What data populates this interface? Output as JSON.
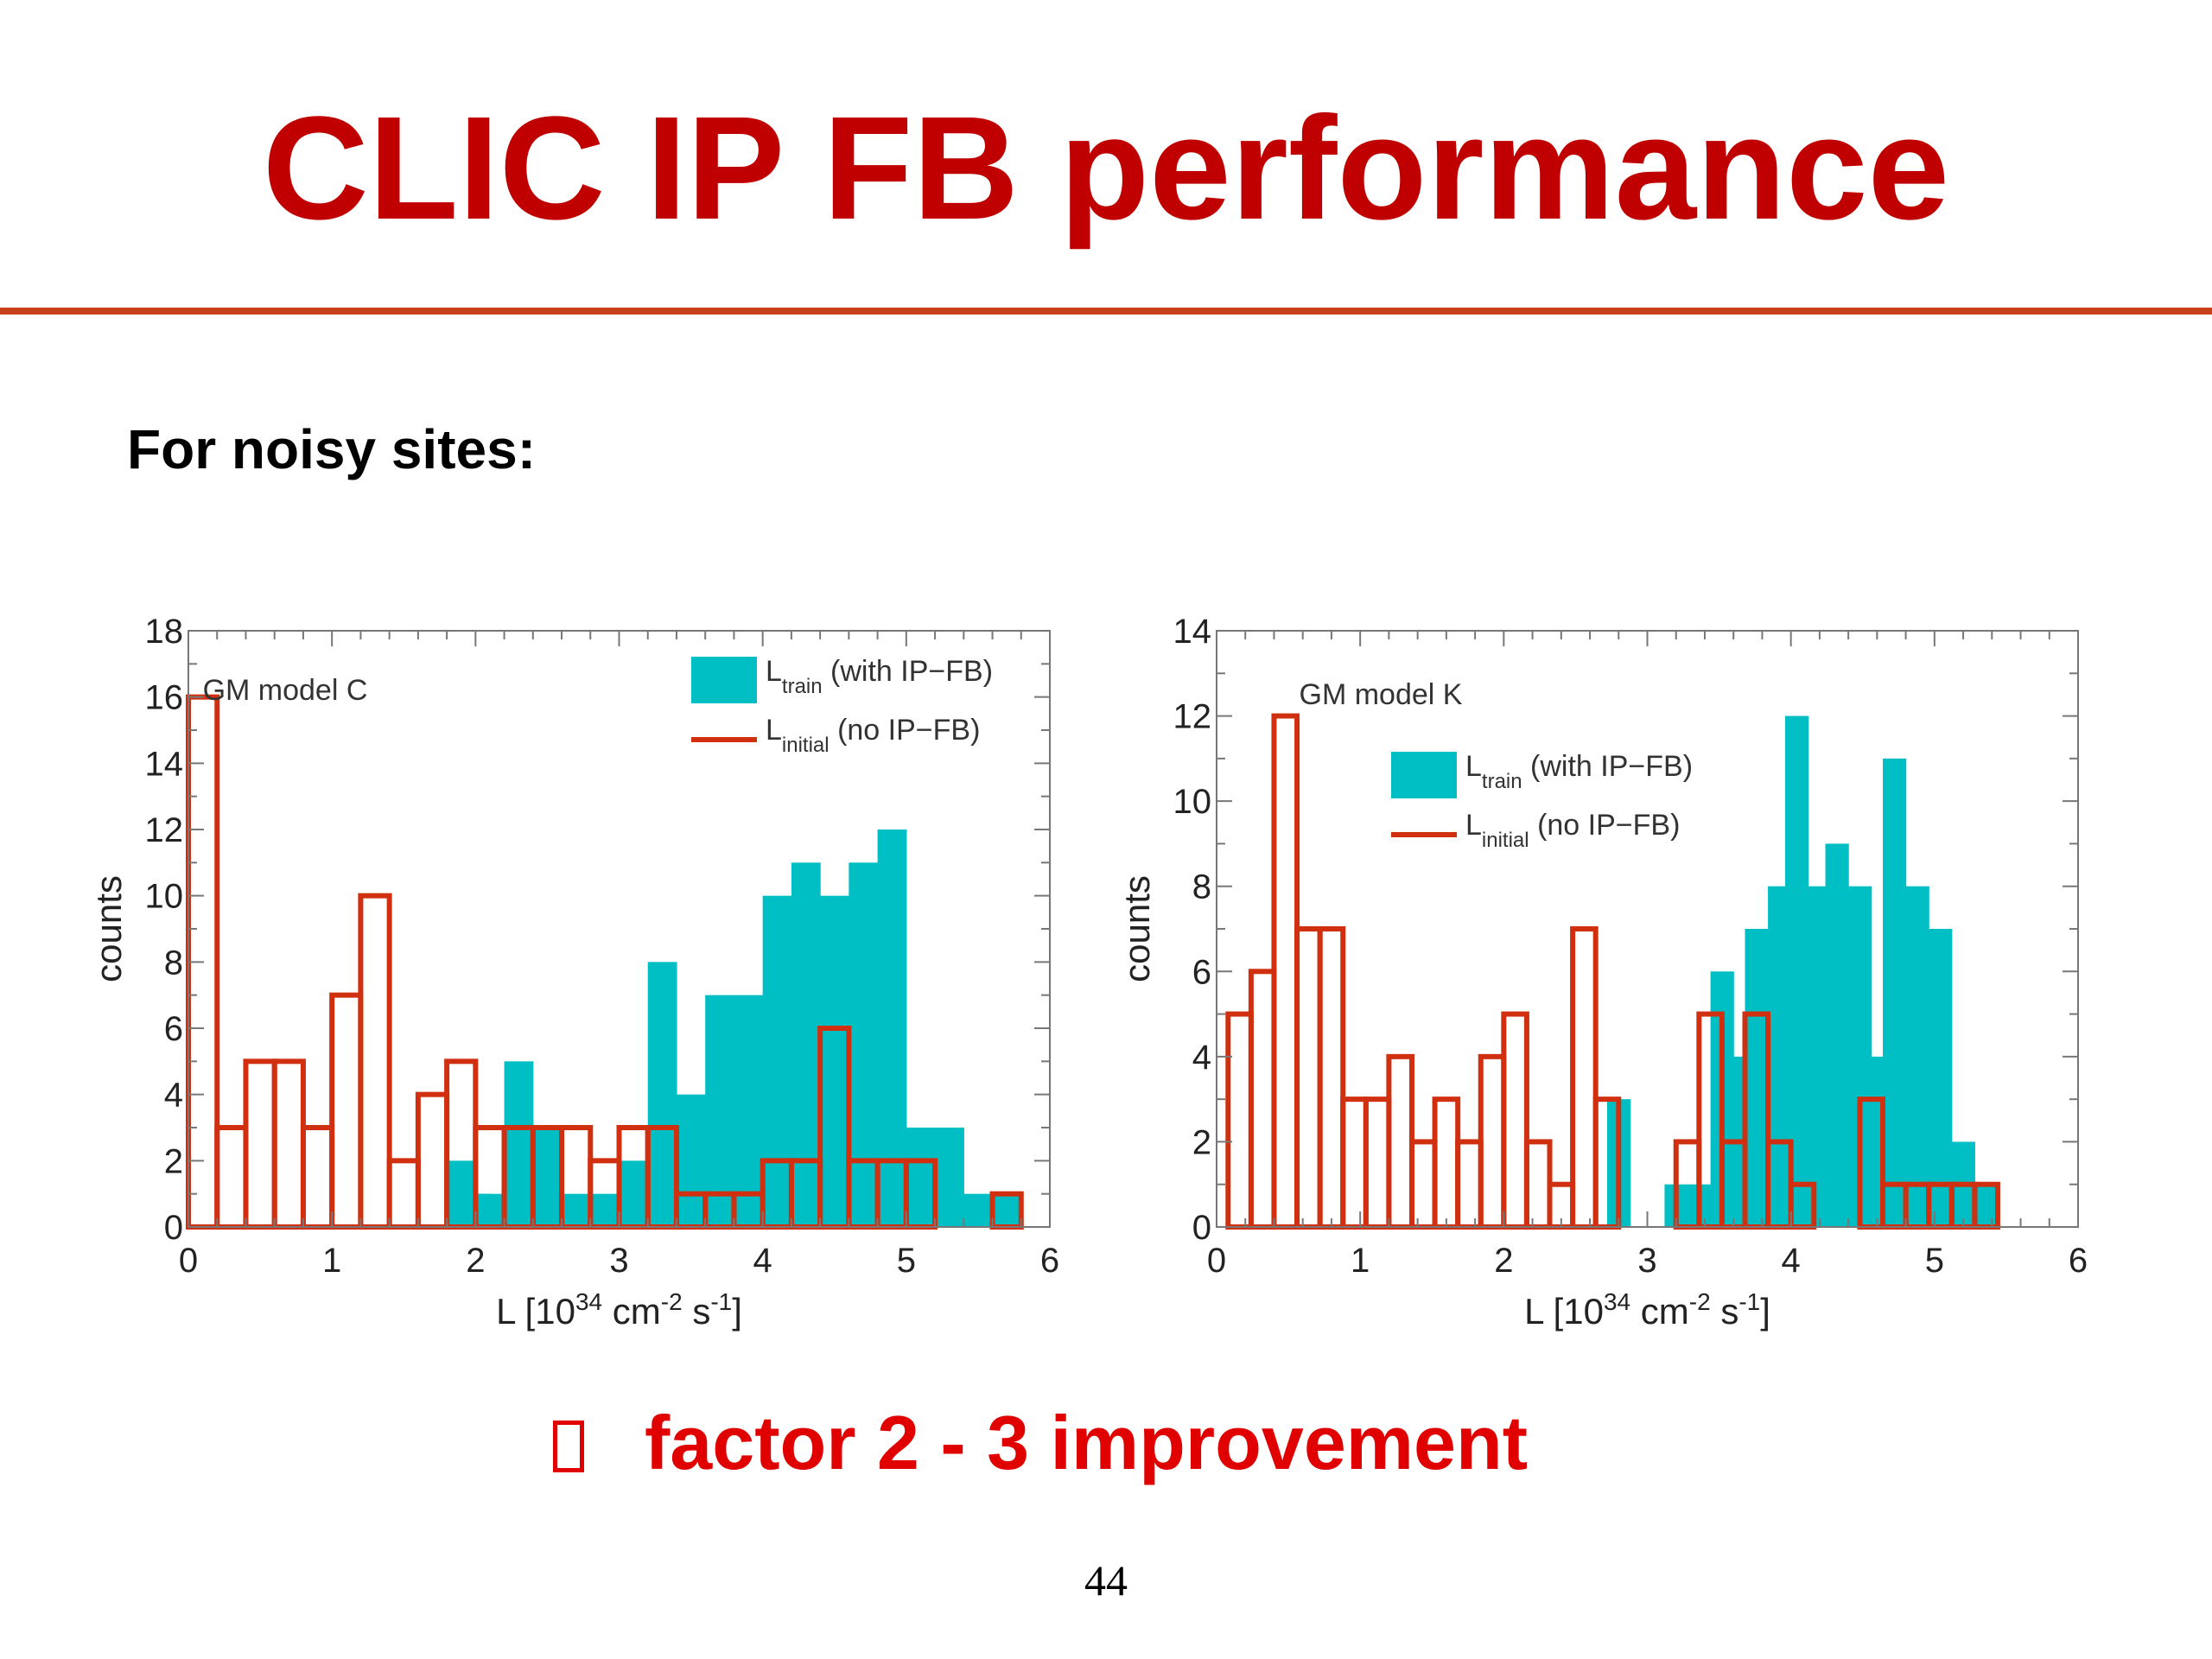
{
  "slide": {
    "title": "CLIC IP FB performance",
    "heading": "For noisy sites:",
    "conclusion": "factor 2 - 3 improvement",
    "conclusion_bullet": "box-bullet-icon",
    "page_number": "44",
    "colors": {
      "title": "#c00000",
      "rule": "#c8411b",
      "conclusion": "#e00000"
    }
  },
  "chart_data": [
    {
      "type": "bar",
      "annotation": "GM model C",
      "ylabel": "counts",
      "xlabel": {
        "base": "L [10",
        "sup1": "34",
        "mid1": " cm",
        "sup2": "-2",
        "mid2": " s",
        "sup3": "-1",
        "end": "]"
      },
      "xlim": [
        0,
        6
      ],
      "ylim": [
        0,
        18
      ],
      "xticks": [
        0,
        1,
        2,
        3,
        4,
        5,
        6
      ],
      "yticks": [
        0,
        2,
        4,
        6,
        8,
        10,
        12,
        14,
        16,
        18
      ],
      "bin_width": 0.2,
      "legend_position": "top-right",
      "series": [
        {
          "name": {
            "main": "L",
            "sub": "train",
            "note": " (with IP−FB)"
          },
          "style": "filled",
          "color": "#00bfc4",
          "bins": [
            [
              1.8,
              2
            ],
            [
              1.9,
              1
            ],
            [
              2.0,
              1
            ],
            [
              2.2,
              5
            ],
            [
              2.4,
              3
            ],
            [
              2.6,
              1
            ],
            [
              2.8,
              1
            ],
            [
              3.0,
              2
            ],
            [
              3.2,
              8
            ],
            [
              3.4,
              4
            ],
            [
              3.6,
              7
            ],
            [
              3.8,
              7
            ],
            [
              4.0,
              10
            ],
            [
              4.2,
              11
            ],
            [
              4.4,
              10
            ],
            [
              4.6,
              11
            ],
            [
              4.8,
              12
            ],
            [
              5.0,
              3
            ],
            [
              5.2,
              3
            ],
            [
              5.4,
              1
            ],
            [
              5.6,
              1
            ]
          ]
        },
        {
          "name": {
            "main": "L",
            "sub": "initial",
            "note": " (no IP−FB)"
          },
          "style": "outline",
          "color": "#d03010",
          "bins": [
            [
              0.0,
              16
            ],
            [
              0.2,
              3
            ],
            [
              0.4,
              5
            ],
            [
              0.6,
              5
            ],
            [
              0.8,
              3
            ],
            [
              1.0,
              7
            ],
            [
              1.2,
              10
            ],
            [
              1.4,
              2
            ],
            [
              1.6,
              4
            ],
            [
              1.8,
              5
            ],
            [
              2.0,
              3
            ],
            [
              2.2,
              3
            ],
            [
              2.4,
              3
            ],
            [
              2.6,
              3
            ],
            [
              2.8,
              2
            ],
            [
              3.0,
              3
            ],
            [
              3.2,
              3
            ],
            [
              3.4,
              1
            ],
            [
              3.6,
              1
            ],
            [
              3.8,
              1
            ],
            [
              4.0,
              2
            ],
            [
              4.2,
              2
            ],
            [
              4.4,
              6
            ],
            [
              4.6,
              2
            ],
            [
              4.8,
              2
            ],
            [
              5.0,
              2
            ],
            [
              5.6,
              1
            ]
          ]
        }
      ]
    },
    {
      "type": "bar",
      "annotation": "GM model K",
      "ylabel": "counts",
      "xlabel": {
        "base": "L [10",
        "sup1": "34",
        "mid1": " cm",
        "sup2": "-2",
        "mid2": " s",
        "sup3": "-1",
        "end": "]"
      },
      "xlim": [
        0,
        6
      ],
      "ylim": [
        0,
        14
      ],
      "xticks": [
        0,
        1,
        2,
        3,
        4,
        5,
        6
      ],
      "yticks": [
        0,
        2,
        4,
        6,
        8,
        10,
        12,
        14
      ],
      "bin_width": 0.16,
      "legend_position": "top-center",
      "series": [
        {
          "name": {
            "main": "L",
            "sub": "train",
            "note": " (with IP−FB)"
          },
          "style": "filled",
          "color": "#00bfc4",
          "bins": [
            [
              2.72,
              3
            ],
            [
              3.12,
              1
            ],
            [
              3.28,
              1
            ],
            [
              3.44,
              6
            ],
            [
              3.52,
              4
            ],
            [
              3.68,
              7
            ],
            [
              3.84,
              8
            ],
            [
              3.96,
              12
            ],
            [
              4.12,
              8
            ],
            [
              4.24,
              9
            ],
            [
              4.4,
              8
            ],
            [
              4.52,
              4
            ],
            [
              4.64,
              11
            ],
            [
              4.8,
              8
            ],
            [
              4.96,
              7
            ],
            [
              5.12,
              2
            ],
            [
              5.28,
              1
            ]
          ]
        },
        {
          "name": {
            "main": "L",
            "sub": "initial",
            "note": " (no IP−FB)"
          },
          "style": "outline",
          "color": "#d03010",
          "bins": [
            [
              0.08,
              5
            ],
            [
              0.24,
              6
            ],
            [
              0.4,
              12
            ],
            [
              0.56,
              7
            ],
            [
              0.72,
              7
            ],
            [
              0.88,
              3
            ],
            [
              1.04,
              3
            ],
            [
              1.2,
              4
            ],
            [
              1.36,
              2
            ],
            [
              1.52,
              3
            ],
            [
              1.68,
              2
            ],
            [
              1.84,
              4
            ],
            [
              2.0,
              5
            ],
            [
              2.16,
              2
            ],
            [
              2.32,
              1
            ],
            [
              2.48,
              7
            ],
            [
              2.64,
              3
            ],
            [
              3.2,
              2
            ],
            [
              3.36,
              5
            ],
            [
              3.52,
              2
            ],
            [
              3.68,
              5
            ],
            [
              3.84,
              2
            ],
            [
              4.0,
              1
            ],
            [
              4.48,
              3
            ],
            [
              4.64,
              1
            ],
            [
              4.8,
              1
            ],
            [
              4.96,
              1
            ],
            [
              5.12,
              1
            ],
            [
              5.28,
              1
            ]
          ]
        }
      ]
    }
  ]
}
